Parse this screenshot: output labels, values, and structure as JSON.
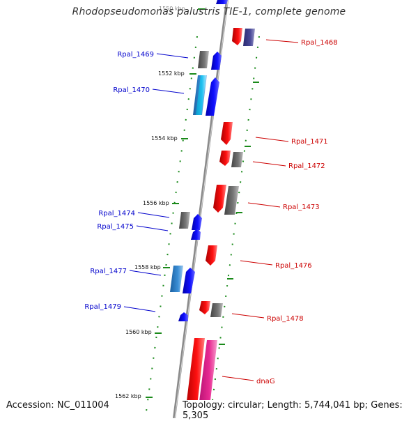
{
  "title": "Rhodopseudomonas palustris TIE-1, complete genome",
  "footer": {
    "accession": "Accession: NC_011004",
    "summary": "Topology: circular; Length: 5,744,041 bp; Genes: 5,305"
  },
  "ticks": [
    {
      "label": "1550 kbp"
    },
    {
      "label": "1552 kbp"
    },
    {
      "label": "1554 kbp"
    },
    {
      "label": "1556 kbp"
    },
    {
      "label": "1558 kbp"
    },
    {
      "label": "1560 kbp"
    },
    {
      "label": "1562 kbp"
    }
  ],
  "genes_forward": [
    {
      "name": "Rpal_1469"
    },
    {
      "name": "Rpal_1470"
    },
    {
      "name": "Rpal_1474"
    },
    {
      "name": "Rpal_1475"
    },
    {
      "name": "Rpal_1477"
    },
    {
      "name": "Rpal_1479"
    }
  ],
  "genes_reverse": [
    {
      "name": "Rpal_1468"
    },
    {
      "name": "Rpal_1471"
    },
    {
      "name": "Rpal_1472"
    },
    {
      "name": "Rpal_1473"
    },
    {
      "name": "Rpal_1476"
    },
    {
      "name": "Rpal_1478"
    },
    {
      "name": "dnaG"
    }
  ],
  "colors": {
    "forward_label": "#0000cc",
    "reverse_label": "#cc0000",
    "backbone": "#888888",
    "tick": "#1a8a1a",
    "gene_blue": "#0000ee",
    "gene_red": "#ee0000",
    "gene_gray": "#666666",
    "gene_lightblue": "#3b8fd6",
    "gene_navy": "#404090",
    "gene_pink": "#e0208a"
  }
}
